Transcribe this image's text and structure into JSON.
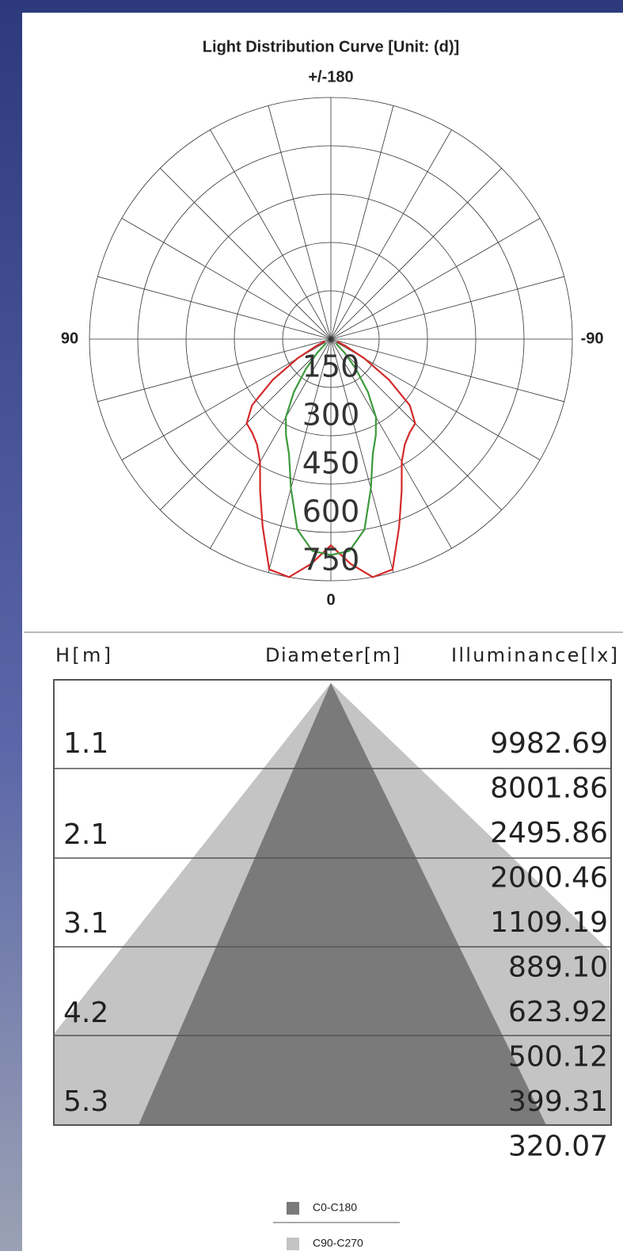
{
  "chart_data": {
    "type": "polar",
    "title": "Light Distribution Curve [Unit: (d)]",
    "x": [
      70,
      65,
      60,
      55,
      50,
      45,
      40,
      35,
      30,
      25,
      20,
      15,
      10,
      5,
      0,
      -5,
      -10,
      -15,
      -20,
      -25,
      -30,
      -35,
      -40,
      -45,
      -50,
      -55,
      -60,
      -65,
      -70
    ],
    "series": [
      {
        "color": "#d42a2a",
        "values": [
          20,
          50,
          120,
          220,
          320,
          370,
          380,
          400,
          440,
          520,
          620,
          740,
          750,
          700,
          640,
          700,
          750,
          740,
          620,
          520,
          440,
          400,
          380,
          370,
          320,
          220,
          120,
          50,
          20
        ]
      },
      {
        "color": "#3c9a3c",
        "values": [
          null,
          null,
          null,
          null,
          20,
          60,
          120,
          200,
          280,
          330,
          380,
          480,
          600,
          660,
          670,
          660,
          600,
          480,
          380,
          330,
          280,
          200,
          120,
          60,
          20,
          null,
          null,
          null,
          null
        ]
      }
    ],
    "ylim": [
      0,
      750
    ],
    "yticks": [
      150,
      300,
      450,
      600,
      750
    ],
    "xticks": [
      {
        "value": 180,
        "label": "+/-180"
      },
      90,
      -90,
      0
    ]
  },
  "cone_table": {
    "headers": [
      "H[m]",
      "Diameter[m]",
      "Illuminance[lx]"
    ],
    "heights": [
      "1.1",
      "2.1",
      "3.1",
      "4.2",
      "5.3"
    ],
    "illuminance": [
      "9982.69",
      "8001.86",
      "2495.86",
      "2000.46",
      "1109.19",
      "889.10",
      "623.92",
      "500.12",
      "399.31",
      "320.07"
    ],
    "legend": [
      {
        "name": "C0-C180",
        "color": "#7a7a7a"
      },
      {
        "name": "C90-C270",
        "color": "#c4c4c4"
      }
    ]
  }
}
